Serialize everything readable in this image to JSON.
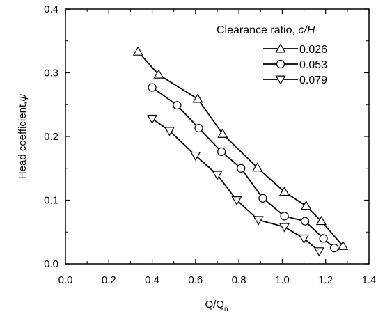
{
  "chart_data": {
    "type": "line",
    "xlabel": "Q/Q",
    "xlabel_subscript": "n",
    "ylabel": "Head coefficient,",
    "ylabel_symbol": "ψ",
    "xlim": [
      0.0,
      1.4
    ],
    "ylim": [
      0.0,
      0.4
    ],
    "xticks": [
      "0.0",
      "0.2",
      "0.4",
      "0.6",
      "0.8",
      "1.0",
      "1.2",
      "1.4"
    ],
    "yticks": [
      "0.0",
      "0.1",
      "0.2",
      "0.3",
      "0.4"
    ],
    "grid": false,
    "legend_position": "top-right",
    "legend_title": "Clearance ratio, ",
    "legend_title_italic": "c/H",
    "series": [
      {
        "name": "0.026",
        "marker": "triangle-up",
        "x": [
          0.335,
          0.43,
          0.61,
          0.725,
          0.885,
          1.01,
          1.11,
          1.18,
          1.28
        ],
        "y": [
          0.333,
          0.297,
          0.259,
          0.204,
          0.151,
          0.113,
          0.091,
          0.067,
          0.028
        ]
      },
      {
        "name": "0.053",
        "marker": "circle",
        "x": [
          0.4,
          0.515,
          0.615,
          0.72,
          0.81,
          0.91,
          1.01,
          1.105,
          1.19,
          1.24
        ],
        "y": [
          0.277,
          0.249,
          0.213,
          0.176,
          0.15,
          0.103,
          0.075,
          0.067,
          0.04,
          0.025
        ]
      },
      {
        "name": "0.079",
        "marker": "triangle-down",
        "x": [
          0.4,
          0.48,
          0.6,
          0.7,
          0.79,
          0.89,
          1.01,
          1.1,
          1.17
        ],
        "y": [
          0.228,
          0.209,
          0.17,
          0.14,
          0.1,
          0.069,
          0.058,
          0.04,
          0.02
        ]
      }
    ]
  }
}
